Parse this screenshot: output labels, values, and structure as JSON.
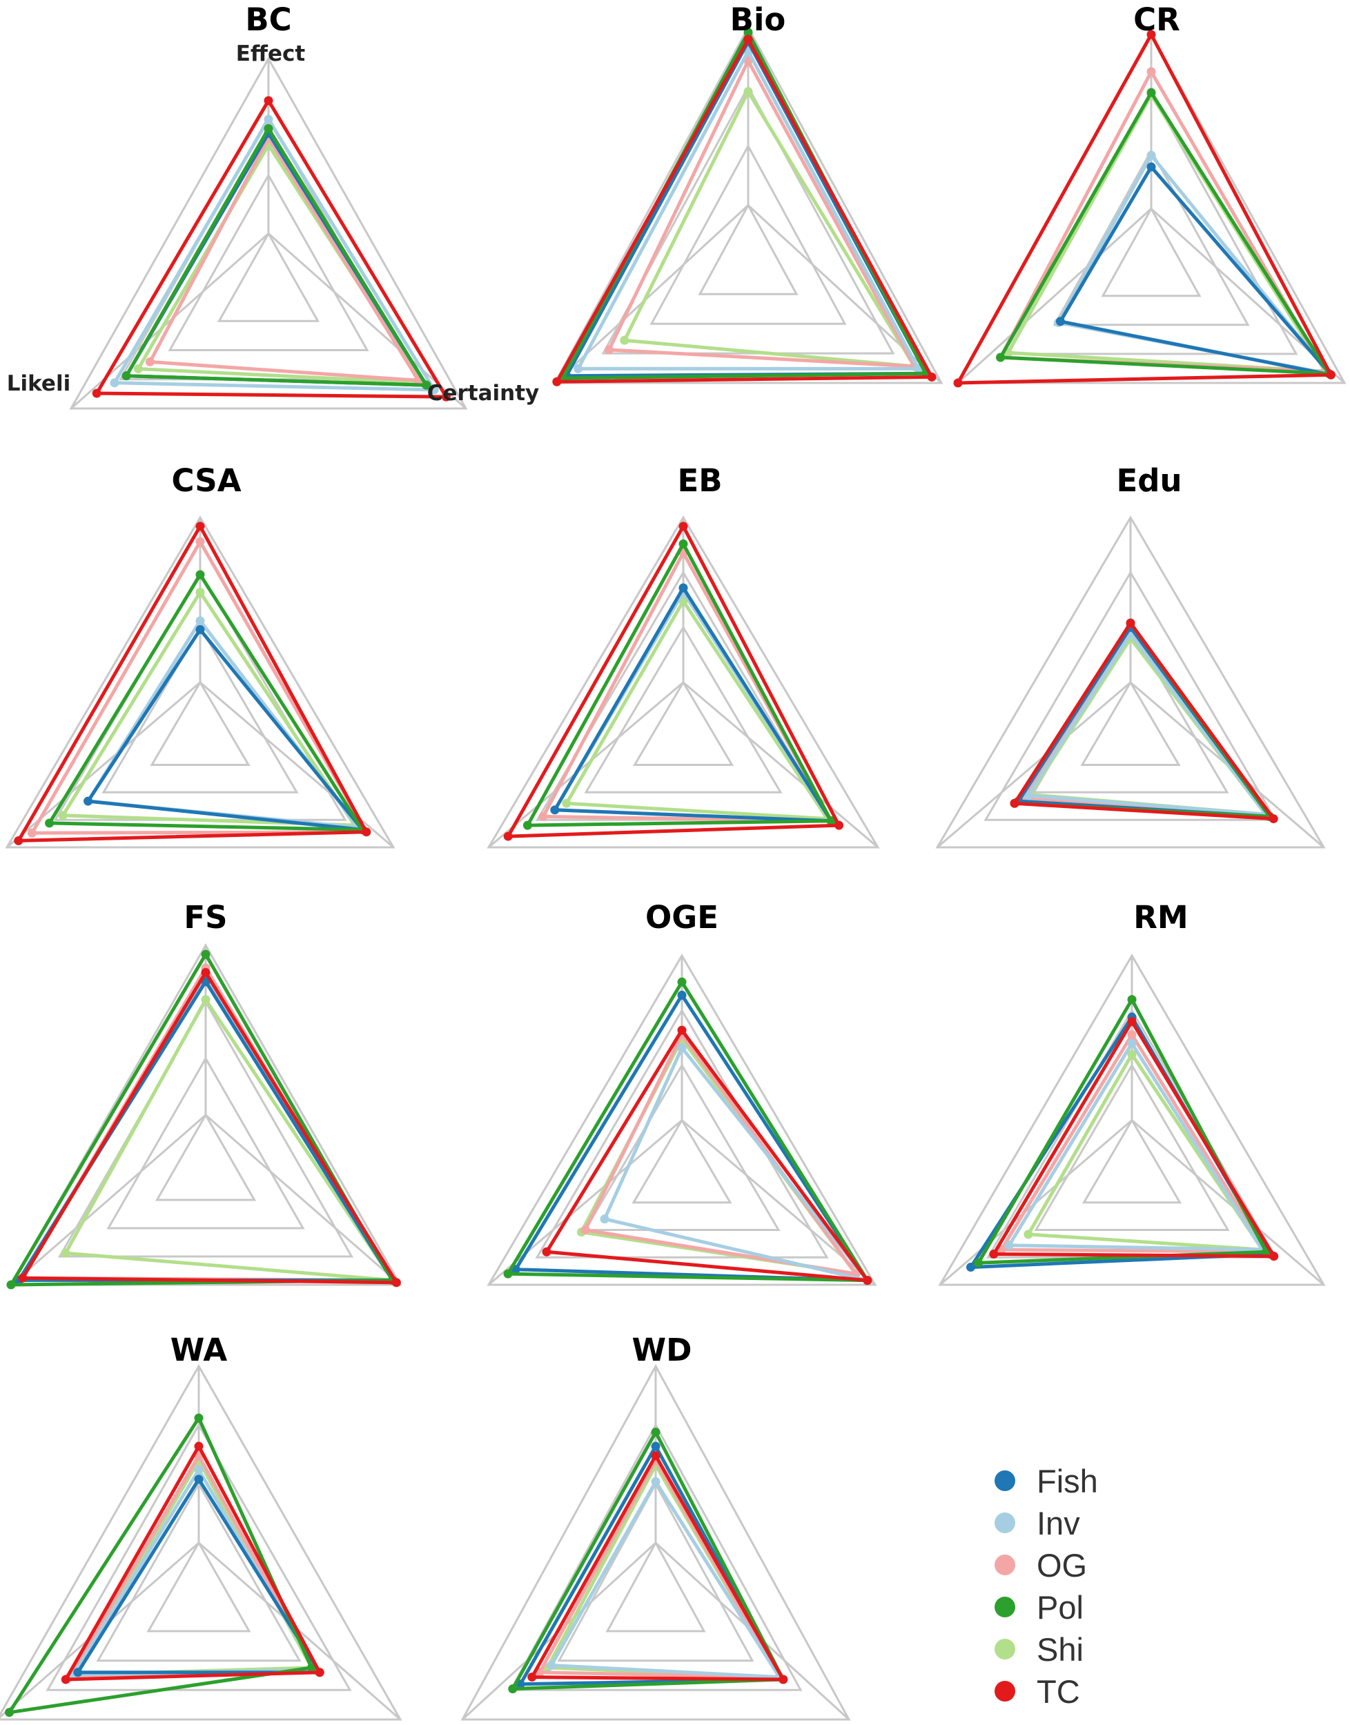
{
  "legend": [
    {
      "name": "Fish",
      "color": "#1f77b4"
    },
    {
      "name": "Inv",
      "color": "#a6cee3"
    },
    {
      "name": "OG",
      "color": "#f4a6a6"
    },
    {
      "name": "Pol",
      "color": "#2ca02c"
    },
    {
      "name": "Shi",
      "color": "#b2df8a"
    },
    {
      "name": "TC",
      "color": "#e31a1c"
    }
  ],
  "axis_labels": [
    "Effect",
    "Likeli",
    "Certainty"
  ],
  "chart_data": [
    {
      "type": "radar",
      "title": "BC",
      "axes": [
        "Effect",
        "Likeli",
        "Certainty"
      ],
      "rlim": [
        0,
        1
      ],
      "gridlines": 4,
      "series": [
        {
          "name": "Fish",
          "values": [
            0.68,
            0.72,
            0.8
          ]
        },
        {
          "name": "Inv",
          "values": [
            0.74,
            0.78,
            0.84
          ]
        },
        {
          "name": "OG",
          "values": [
            0.66,
            0.6,
            0.76
          ]
        },
        {
          "name": "Pol",
          "values": [
            0.7,
            0.72,
            0.8
          ]
        },
        {
          "name": "Shi",
          "values": [
            0.63,
            0.66,
            0.78
          ]
        },
        {
          "name": "TC",
          "values": [
            0.82,
            0.87,
            0.9
          ]
        }
      ]
    },
    {
      "type": "radar",
      "title": "Bio",
      "axes": [
        "Effect",
        "Likeli",
        "Certainty"
      ],
      "rlim": [
        0,
        1
      ],
      "gridlines": 4,
      "series": [
        {
          "name": "Fish",
          "values": [
            0.94,
            0.94,
            0.92
          ]
        },
        {
          "name": "Inv",
          "values": [
            0.9,
            0.88,
            0.88
          ]
        },
        {
          "name": "OG",
          "values": [
            0.86,
            0.72,
            0.86
          ]
        },
        {
          "name": "Pol",
          "values": [
            0.98,
            0.96,
            0.92
          ]
        },
        {
          "name": "Shi",
          "values": [
            0.73,
            0.64,
            0.86
          ]
        },
        {
          "name": "TC",
          "values": [
            0.95,
            0.99,
            0.95
          ]
        }
      ]
    },
    {
      "type": "radar",
      "title": "CR",
      "axes": [
        "Effect",
        "Likeli",
        "Certainty"
      ],
      "rlim": [
        0,
        1
      ],
      "gridlines": 4,
      "series": [
        {
          "name": "Fish",
          "values": [
            0.43,
            0.47,
            0.93
          ]
        },
        {
          "name": "Inv",
          "values": [
            0.48,
            0.48,
            0.92
          ]
        },
        {
          "name": "OG",
          "values": [
            0.84,
            0.78,
            0.9
          ]
        },
        {
          "name": "Pol",
          "values": [
            0.75,
            0.78,
            0.92
          ]
        },
        {
          "name": "Shi",
          "values": [
            0.74,
            0.74,
            0.9
          ]
        },
        {
          "name": "TC",
          "values": [
            1.0,
            1.0,
            0.93
          ]
        }
      ]
    },
    {
      "type": "radar",
      "title": "CSA",
      "axes": [
        "Effect",
        "Likeli",
        "Certainty"
      ],
      "rlim": [
        0,
        1
      ],
      "gridlines": 4,
      "series": [
        {
          "name": "Fish",
          "values": [
            0.49,
            0.58,
            0.84
          ]
        },
        {
          "name": "Inv",
          "values": [
            0.53,
            0.58,
            0.82
          ]
        },
        {
          "name": "OG",
          "values": [
            0.89,
            0.87,
            0.86
          ]
        },
        {
          "name": "Pol",
          "values": [
            0.74,
            0.78,
            0.84
          ]
        },
        {
          "name": "Shi",
          "values": [
            0.66,
            0.71,
            0.8
          ]
        },
        {
          "name": "TC",
          "values": [
            0.96,
            0.94,
            0.86
          ]
        }
      ]
    },
    {
      "type": "radar",
      "title": "EB",
      "axes": [
        "Effect",
        "Likeli",
        "Certainty"
      ],
      "rlim": [
        0,
        1
      ],
      "gridlines": 4,
      "series": [
        {
          "name": "Fish",
          "values": [
            0.68,
            0.66,
            0.76
          ]
        },
        {
          "name": "Inv",
          "values": [
            0.66,
            0.66,
            0.76
          ]
        },
        {
          "name": "OG",
          "values": [
            0.84,
            0.72,
            0.76
          ]
        },
        {
          "name": "Pol",
          "values": [
            0.88,
            0.8,
            0.76
          ]
        },
        {
          "name": "Shi",
          "values": [
            0.62,
            0.6,
            0.74
          ]
        },
        {
          "name": "TC",
          "values": [
            0.96,
            0.9,
            0.8
          ]
        }
      ]
    },
    {
      "type": "radar",
      "title": "Edu",
      "axes": [
        "Effect",
        "Likeli",
        "Certainty"
      ],
      "rlim": [
        0,
        1
      ],
      "gridlines": 4,
      "series": [
        {
          "name": "Fish",
          "values": [
            0.5,
            0.58,
            0.72
          ]
        },
        {
          "name": "Inv",
          "values": [
            0.47,
            0.53,
            0.7
          ]
        },
        {
          "name": "OG",
          "values": [
            0.48,
            0.56,
            0.7
          ]
        },
        {
          "name": "Pol",
          "values": [
            0.52,
            0.6,
            0.72
          ]
        },
        {
          "name": "Shi",
          "values": [
            0.45,
            0.52,
            0.7
          ]
        },
        {
          "name": "TC",
          "values": [
            0.52,
            0.6,
            0.74
          ]
        }
      ]
    },
    {
      "type": "radar",
      "title": "FS",
      "axes": [
        "Effect",
        "Likeli",
        "Certainty"
      ],
      "rlim": [
        0,
        1
      ],
      "gridlines": 4,
      "series": [
        {
          "name": "Fish",
          "values": [
            0.84,
            0.96,
            0.96
          ]
        },
        {
          "name": "Inv",
          "values": [
            0.86,
            0.96,
            0.96
          ]
        },
        {
          "name": "OG",
          "values": [
            0.9,
            0.94,
            0.96
          ]
        },
        {
          "name": "Pol",
          "values": [
            0.96,
            1.0,
            0.96
          ]
        },
        {
          "name": "Shi",
          "values": [
            0.76,
            0.72,
            0.96
          ]
        },
        {
          "name": "TC",
          "values": [
            0.88,
            0.94,
            0.98
          ]
        }
      ]
    },
    {
      "type": "radar",
      "title": "OGE",
      "axes": [
        "Effect",
        "Likeli",
        "Certainty"
      ],
      "rlim": [
        0,
        1
      ],
      "gridlines": 4,
      "series": [
        {
          "name": "Fish",
          "values": [
            0.82,
            0.86,
            0.96
          ]
        },
        {
          "name": "Inv",
          "values": [
            0.58,
            0.4,
            0.96
          ]
        },
        {
          "name": "OG",
          "values": [
            0.64,
            0.5,
            0.9
          ]
        },
        {
          "name": "Pol",
          "values": [
            0.88,
            0.9,
            0.96
          ]
        },
        {
          "name": "Shi",
          "values": [
            0.62,
            0.52,
            0.9
          ]
        },
        {
          "name": "TC",
          "values": [
            0.66,
            0.7,
            0.96
          ]
        }
      ]
    },
    {
      "type": "radar",
      "title": "RM",
      "axes": [
        "Effect",
        "Likeli",
        "Certainty"
      ],
      "rlim": [
        0,
        1
      ],
      "gridlines": 4,
      "series": [
        {
          "name": "Fish",
          "values": [
            0.72,
            0.84,
            0.72
          ]
        },
        {
          "name": "Inv",
          "values": [
            0.6,
            0.64,
            0.68
          ]
        },
        {
          "name": "OG",
          "values": [
            0.64,
            0.68,
            0.7
          ]
        },
        {
          "name": "Pol",
          "values": [
            0.8,
            0.8,
            0.7
          ]
        },
        {
          "name": "Shi",
          "values": [
            0.55,
            0.54,
            0.68
          ]
        },
        {
          "name": "TC",
          "values": [
            0.7,
            0.72,
            0.74
          ]
        }
      ]
    },
    {
      "type": "radar",
      "title": "WA",
      "axes": [
        "Effect",
        "Likeli",
        "Certainty"
      ],
      "rlim": [
        0,
        1
      ],
      "gridlines": 4,
      "series": [
        {
          "name": "Fish",
          "values": [
            0.52,
            0.6,
            0.6
          ]
        },
        {
          "name": "Inv",
          "values": [
            0.56,
            0.62,
            0.58
          ]
        },
        {
          "name": "OG",
          "values": [
            0.62,
            0.64,
            0.58
          ]
        },
        {
          "name": "Pol",
          "values": [
            0.78,
            0.94,
            0.56
          ]
        },
        {
          "name": "Shi",
          "values": [
            0.6,
            0.62,
            0.56
          ]
        },
        {
          "name": "TC",
          "values": [
            0.66,
            0.66,
            0.6
          ]
        }
      ]
    },
    {
      "type": "radar",
      "title": "WD",
      "axes": [
        "Effect",
        "Likeli",
        "Certainty"
      ],
      "rlim": [
        0,
        1
      ],
      "gridlines": 4,
      "series": [
        {
          "name": "Fish",
          "values": [
            0.66,
            0.7,
            0.66
          ]
        },
        {
          "name": "Inv",
          "values": [
            0.51,
            0.54,
            0.64
          ]
        },
        {
          "name": "OG",
          "values": [
            0.6,
            0.6,
            0.64
          ]
        },
        {
          "name": "Pol",
          "values": [
            0.72,
            0.74,
            0.66
          ]
        },
        {
          "name": "Shi",
          "values": [
            0.58,
            0.56,
            0.64
          ]
        },
        {
          "name": "TC",
          "values": [
            0.62,
            0.64,
            0.66
          ]
        }
      ]
    }
  ]
}
